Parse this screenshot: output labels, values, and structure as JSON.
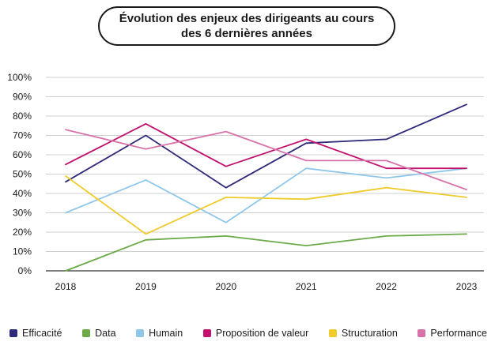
{
  "title": {
    "line1": "Évolution des enjeux des dirigeants au cours",
    "line2": "des 6 dernières années"
  },
  "chart_data": {
    "type": "line",
    "title": "Évolution des enjeux des dirigeants au cours des 6 dernières années",
    "xlabel": "",
    "ylabel": "",
    "categories": [
      "2018",
      "2019",
      "2020",
      "2021",
      "2022",
      "2023"
    ],
    "y_ticks": [
      "0%",
      "10%",
      "20%",
      "30%",
      "40%",
      "50%",
      "60%",
      "70%",
      "80%",
      "90%",
      "100%"
    ],
    "ylim": [
      0,
      100
    ],
    "grid": "horizontal",
    "legend_position": "bottom",
    "series": [
      {
        "name": "Efficacité",
        "color": "#2e2a7a",
        "values": [
          46,
          70,
          43,
          66,
          68,
          86
        ]
      },
      {
        "name": "Data",
        "color": "#6aaa48",
        "values": [
          0,
          16,
          18,
          13,
          18,
          19
        ]
      },
      {
        "name": "Humain",
        "color": "#8fc7ea",
        "values": [
          30,
          47,
          25,
          53,
          48,
          53
        ]
      },
      {
        "name": "Proposition de valeur",
        "color": "#c2106e",
        "values": [
          55,
          76,
          54,
          68,
          53,
          53
        ]
      },
      {
        "name": "Structuration",
        "color": "#f0cb2c",
        "values": [
          49,
          19,
          38,
          37,
          43,
          38
        ]
      },
      {
        "name": "Performance",
        "color": "#d773aa",
        "values": [
          73,
          63,
          72,
          57,
          57,
          42
        ]
      }
    ]
  }
}
